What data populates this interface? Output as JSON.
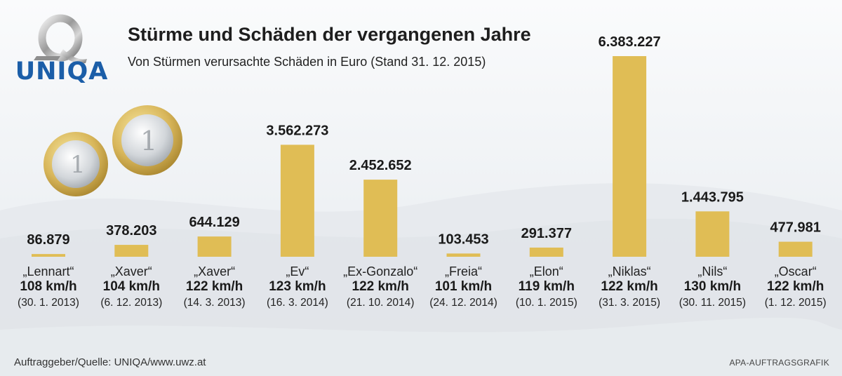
{
  "header": {
    "logo_text": "UNIQA",
    "title": "Stürme und Schäden der vergangenen Jahre",
    "subtitle": "Von Stürmen verursachte Schäden in Euro (Stand 31. 12. 2015)"
  },
  "footer": {
    "source": "Auftraggeber/Quelle: UNIQA/www.uwz.at",
    "credit": "APA-AUFTRAGSGRAFIK"
  },
  "colors": {
    "bar": "#e0bd55",
    "logo_blue": "#1b5ea8",
    "text": "#222222"
  },
  "chart_data": {
    "type": "bar",
    "title": "Stürme und Schäden der vergangenen Jahre",
    "subtitle": "Von Stürmen verursachte Schäden in Euro (Stand 31. 12. 2015)",
    "xlabel": "",
    "ylabel": "",
    "ylim": [
      0,
      6383227
    ],
    "grid": false,
    "legend": "none",
    "categories": [
      "„Lennart“",
      "„Xaver“",
      "„Xaver“",
      "„Ev“",
      "„Ex-Gonzalo“",
      "„Freia“",
      "„Elon“",
      "„Niklas“",
      "„Nils“",
      "„Oscar“"
    ],
    "speeds": [
      "108 km/h",
      "104 km/h",
      "122 km/h",
      "123 km/h",
      "122 km/h",
      "101 km/h",
      "119 km/h",
      "122 km/h",
      "130 km/h",
      "122 km/h"
    ],
    "dates": [
      "(30. 1. 2013)",
      "(6. 12. 2013)",
      "(14. 3. 2013)",
      "(16. 3. 2014)",
      "(21. 10. 2014)",
      "(24. 12. 2014)",
      "(10. 1. 2015)",
      "(31. 3. 2015)",
      "(30. 11. 2015)",
      "(1. 12. 2015)"
    ],
    "values": [
      86879,
      378203,
      644129,
      3562273,
      2452652,
      103453,
      291377,
      6383227,
      1443795,
      477981
    ],
    "value_labels": [
      "86.879",
      "378.203",
      "644.129",
      "3.562.273",
      "2.452.652",
      "103.453",
      "291.377",
      "6.383.227",
      "1.443.795",
      "477.981"
    ]
  }
}
